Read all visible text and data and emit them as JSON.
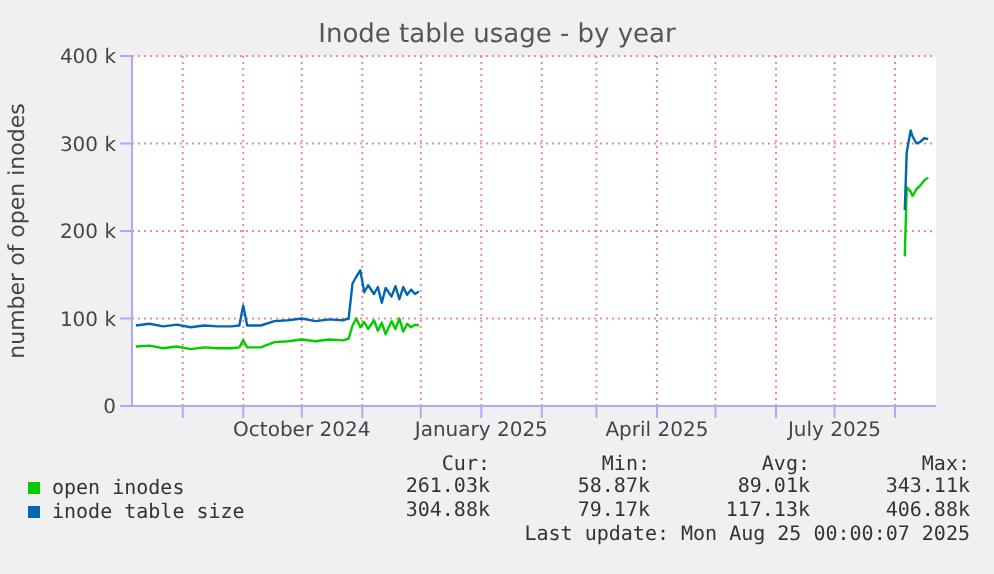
{
  "chart_data": {
    "type": "line",
    "title": "Inode table usage - by year",
    "ylabel": "number of open inodes",
    "x": [
      "2024-07-08",
      "2024-07-15",
      "2024-07-22",
      "2024-07-29",
      "2024-08-05",
      "2024-08-12",
      "2024-08-19",
      "2024-08-26",
      "2024-08-30",
      "2024-09-01",
      "2024-09-03",
      "2024-09-10",
      "2024-09-17",
      "2024-09-24",
      "2024-10-01",
      "2024-10-08",
      "2024-10-15",
      "2024-10-22",
      "2024-10-25",
      "2024-10-27",
      "2024-10-29",
      "2024-10-31",
      "2024-11-02",
      "2024-11-04",
      "2024-11-07",
      "2024-11-09",
      "2024-11-11",
      "2024-11-13",
      "2024-11-16",
      "2024-11-18",
      "2024-11-20",
      "2024-11-22",
      "2024-11-24",
      "2024-11-26",
      "2024-11-28",
      "2024-11-30",
      "2024-12-05",
      "2025-08-06",
      "2025-08-07",
      "2025-08-09",
      "2025-08-10",
      "2025-08-12",
      "2025-08-14",
      "2025-08-16",
      "2025-08-18"
    ],
    "series": [
      {
        "name": "open inodes",
        "color": "#00cc00",
        "values": [
          68,
          69,
          66,
          68,
          65,
          67,
          66,
          66,
          67,
          75,
          67,
          67,
          73,
          74,
          76,
          74,
          76,
          75,
          77,
          92,
          100,
          90,
          96,
          88,
          98,
          86,
          95,
          82,
          97,
          88,
          100,
          85,
          94,
          90,
          93,
          92,
          null,
          171,
          250,
          245,
          240,
          248,
          252,
          258,
          261
        ]
      },
      {
        "name": "inode table size",
        "color": "#0066b3",
        "values": [
          92,
          94,
          91,
          93,
          90,
          92,
          91,
          91,
          92,
          115,
          92,
          92,
          97,
          98,
          100,
          97,
          99,
          98,
          100,
          140,
          148,
          155,
          130,
          138,
          128,
          136,
          118,
          135,
          125,
          137,
          122,
          136,
          127,
          133,
          128,
          131,
          null,
          224,
          290,
          315,
          308,
          300,
          302,
          306,
          305
        ]
      }
    ],
    "xlim": [
      "2024-07-06",
      "2025-08-22"
    ],
    "xticks": [
      {
        "value": "2024-08-01",
        "label": null
      },
      {
        "value": "2024-09-01",
        "label": null
      },
      {
        "value": "2024-10-01",
        "label": "October 2024"
      },
      {
        "value": "2024-11-01",
        "label": null
      },
      {
        "value": "2024-12-01",
        "label": null
      },
      {
        "value": "2025-01-01",
        "label": "January 2025"
      },
      {
        "value": "2025-02-01",
        "label": null
      },
      {
        "value": "2025-03-01",
        "label": null
      },
      {
        "value": "2025-04-01",
        "label": "April 2025"
      },
      {
        "value": "2025-05-01",
        "label": null
      },
      {
        "value": "2025-06-01",
        "label": null
      },
      {
        "value": "2025-07-01",
        "label": "July 2025"
      },
      {
        "value": "2025-08-01",
        "label": null
      }
    ],
    "ylim": [
      0,
      400
    ],
    "yticks": [
      0,
      {
        "value": 100,
        "label": "100 k"
      },
      {
        "value": 200,
        "label": "200 k"
      },
      {
        "value": 300,
        "label": "300 k"
      },
      {
        "value": 400,
        "label": "400 k"
      }
    ],
    "grid": true,
    "legend": "bottom",
    "annotations": [
      "Cur:",
      "Min:",
      "Avg:",
      "Max:",
      "261.03k",
      "58.87k",
      "89.01k",
      "343.11k",
      "304.88k",
      "79.17k",
      "117.13k",
      "406.88k",
      "Last update: Mon Aug 25 00:00:07 2025"
    ]
  }
}
